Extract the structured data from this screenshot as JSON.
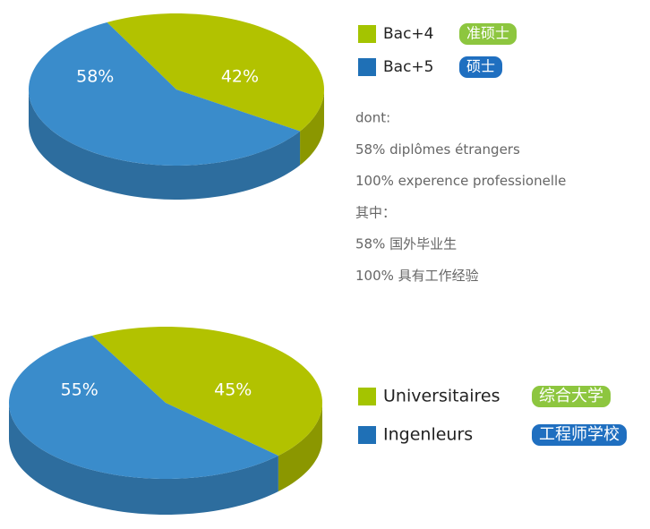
{
  "chart_data": [
    {
      "type": "pie",
      "categories": [
        "Bac+4",
        "Bac+5"
      ],
      "values": [
        42,
        58
      ],
      "value_labels": [
        "42%",
        "58%"
      ],
      "colors": [
        "#b2c200",
        "#3a8ccb"
      ],
      "legend_colors": [
        "#a4c400",
        "#1f70b6"
      ],
      "badges": [
        "准硕士",
        "硕士"
      ],
      "badge_colors": [
        "#8dc63f",
        "#1f6fc0"
      ],
      "notes": [
        "dont:",
        "58% diplômes étrangers",
        "100% experence professionelle",
        "其中：",
        "58% 国外毕业生",
        "100% 具有工作经验"
      ]
    },
    {
      "type": "pie",
      "categories": [
        "Universitaires",
        "Ingenleurs"
      ],
      "values": [
        45,
        55
      ],
      "value_labels": [
        "45%",
        "55%"
      ],
      "colors": [
        "#b2c200",
        "#3a8ccb"
      ],
      "legend_colors": [
        "#a4c400",
        "#1f70b6"
      ],
      "badges": [
        "综合大学",
        "工程师学校"
      ],
      "badge_colors": [
        "#8dc63f",
        "#1f6fc0"
      ]
    }
  ]
}
